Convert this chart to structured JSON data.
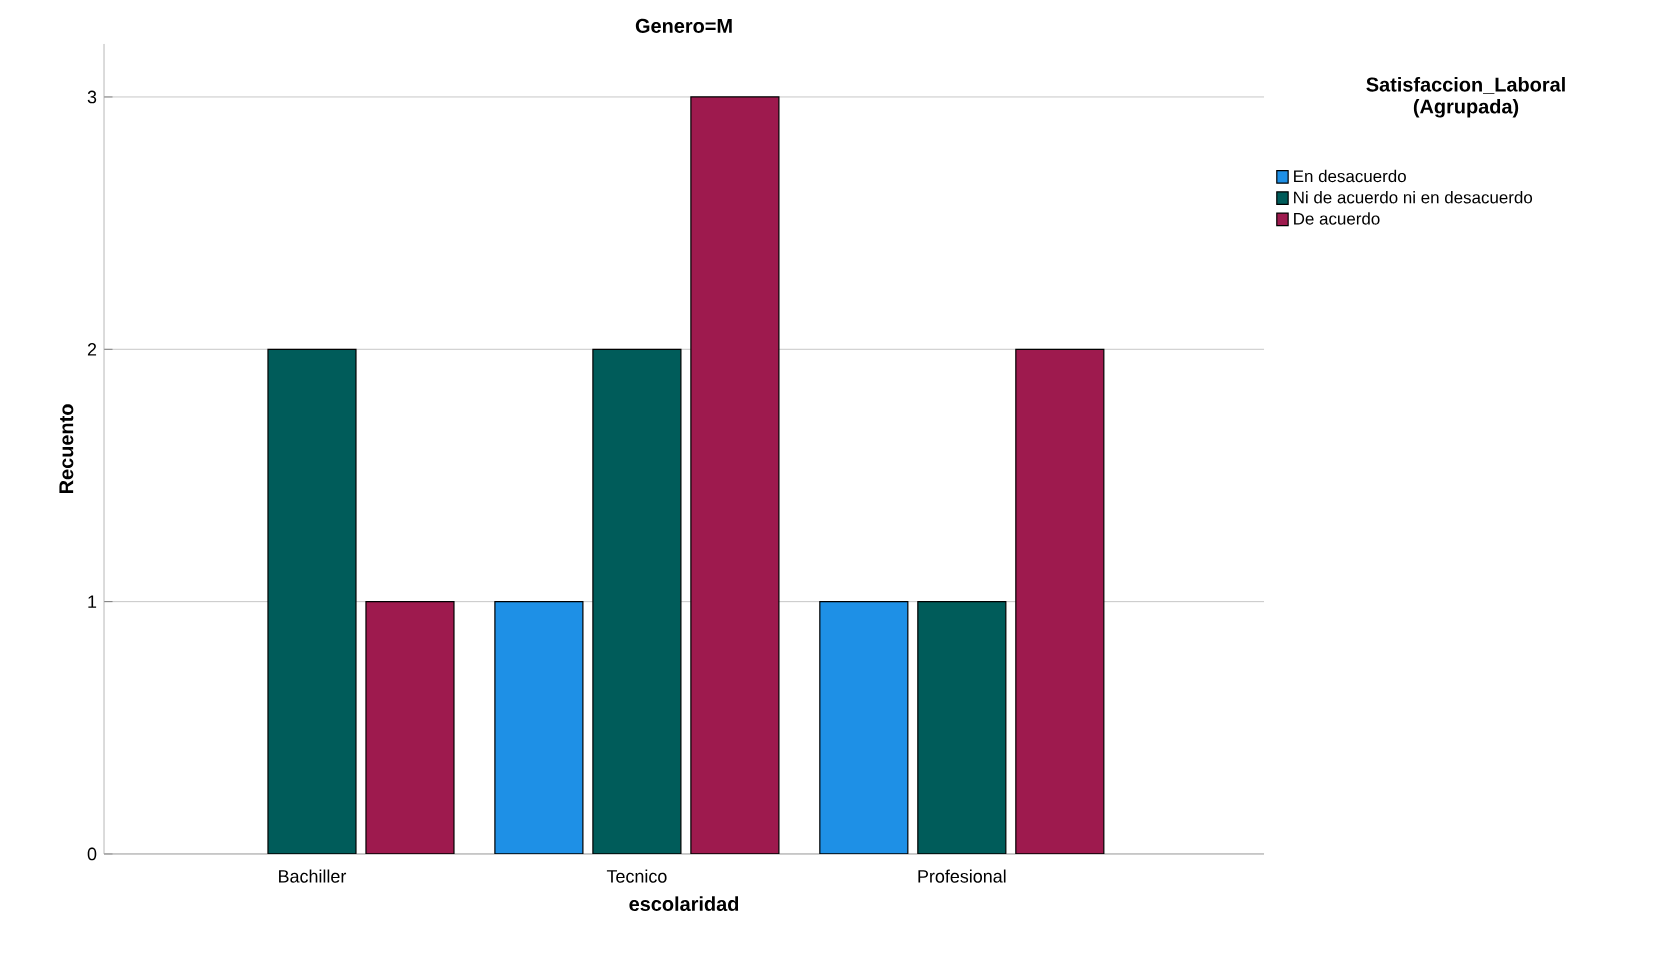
{
  "chart_data": {
    "type": "bar",
    "title": "Genero=M",
    "xlabel": "escolaridad",
    "ylabel": "Recuento",
    "legend_title": "Satisfaccion_Laboral (Agrupada)",
    "categories": [
      "Bachiller",
      "Tecnico",
      "Profesional"
    ],
    "series": [
      {
        "name": "En desacuerdo",
        "color": "#1e90e6",
        "values": [
          null,
          1,
          1
        ]
      },
      {
        "name": "Ni de acuerdo ni en desacuerdo",
        "color": "#005c5a",
        "values": [
          2,
          2,
          1
        ]
      },
      {
        "name": "De acuerdo",
        "color": "#9e1a4e",
        "values": [
          1,
          3,
          2
        ]
      }
    ],
    "ylim": [
      0,
      3.21
    ],
    "yticks": [
      0,
      1,
      2,
      3
    ],
    "grid": "y",
    "legend": "top right"
  }
}
